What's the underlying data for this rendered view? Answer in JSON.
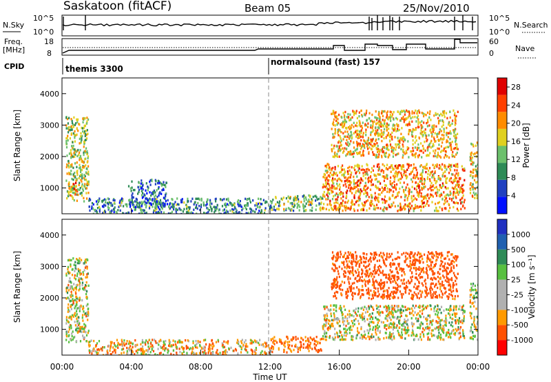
{
  "header": {
    "station": "Saskatoon (fitACF)",
    "beam": "Beam 05",
    "date": "25/Nov/2010"
  },
  "top_panels": {
    "nsky_label": "N.Sky",
    "nsky_ticks": [
      "10^5",
      "10^0"
    ],
    "nsearch_label": "N.Search",
    "freq_label_1": "Freq.",
    "freq_label_2": "[MHz]",
    "freq_ticks": [
      "18",
      "8"
    ],
    "nave_label": "Nave",
    "nave_ticks": [
      "60",
      "0"
    ],
    "cpid_label": "CPID",
    "cpid_segments": [
      {
        "start": "00:00",
        "label": "themis 3300"
      },
      {
        "start": "12:00",
        "label": "normalsound (fast) 157"
      }
    ]
  },
  "colors": {
    "power": [
      "#0010ff",
      "#2040c0",
      "#2e8b57",
      "#6cc06c",
      "#e0d020",
      "#ff8c00",
      "#ff4000",
      "#e00000"
    ],
    "velocity": [
      "#ff0000",
      "#ff5000",
      "#ff9a00",
      "#b0b0b0",
      "#b0b0b0",
      "#58c040",
      "#2e8b57",
      "#2060b0",
      "#2030c0"
    ]
  },
  "chart_data": [
    {
      "type": "heatmap",
      "panel": "power",
      "ylabel": "Slant Range [km]",
      "xlabel": "Time UT",
      "xlim": [
        "00:00",
        "24:00"
      ],
      "ylim": [
        180,
        4500
      ],
      "x_ticks": [
        "00:00",
        "04:00",
        "08:00",
        "12:00",
        "16:00",
        "20:00",
        "00:00"
      ],
      "y_ticks": [
        1000,
        2000,
        3000,
        4000
      ],
      "colorbar": {
        "label": "Power [dB]",
        "ticks": [
          4,
          8,
          12,
          16,
          20,
          24,
          28
        ],
        "range": [
          0,
          30
        ]
      },
      "regions": [
        {
          "t": [
            0.2,
            1.5
          ],
          "r": [
            600,
            3300
          ],
          "value": 16
        },
        {
          "t": [
            0.3,
            0.9
          ],
          "r": [
            800,
            1300
          ],
          "value": 22
        },
        {
          "t": [
            1.5,
            12.0
          ],
          "r": [
            200,
            700
          ],
          "value": 10
        },
        {
          "t": [
            3.8,
            6.0
          ],
          "r": [
            400,
            1300
          ],
          "value": 8
        },
        {
          "t": [
            12.0,
            15.0
          ],
          "r": [
            300,
            800
          ],
          "value": 14
        },
        {
          "t": [
            15.0,
            23.2
          ],
          "r": [
            300,
            1800
          ],
          "value": 22
        },
        {
          "t": [
            15.5,
            22.8
          ],
          "r": [
            2000,
            3500
          ],
          "value": 20
        },
        {
          "t": [
            23.5,
            24.0
          ],
          "r": [
            700,
            2500
          ],
          "value": 18
        }
      ]
    },
    {
      "type": "heatmap",
      "panel": "velocity",
      "ylabel": "Slant Range [km]",
      "xlabel": "Time UT",
      "xlim": [
        "00:00",
        "24:00"
      ],
      "ylim": [
        180,
        4500
      ],
      "x_ticks": [
        "00:00",
        "04:00",
        "08:00",
        "12:00",
        "16:00",
        "20:00",
        "00:00"
      ],
      "y_ticks": [
        1000,
        2000,
        3000,
        4000
      ],
      "colorbar": {
        "label": "Velocity [m s⁻¹]",
        "ticks": [
          "1000",
          "500",
          "100",
          "25",
          "-25",
          "-100",
          "-500",
          "-1000"
        ]
      },
      "regions": [
        {
          "t": [
            0.2,
            1.5
          ],
          "r": [
            600,
            3300
          ],
          "value": 0
        },
        {
          "t": [
            1.5,
            12.0
          ],
          "r": [
            200,
            700
          ],
          "value": -50
        },
        {
          "t": [
            12.0,
            15.0
          ],
          "r": [
            300,
            800
          ],
          "value": -120
        },
        {
          "t": [
            15.0,
            23.2
          ],
          "r": [
            700,
            1800
          ],
          "value": 0
        },
        {
          "t": [
            15.5,
            22.8
          ],
          "r": [
            2000,
            3500
          ],
          "value": -200
        },
        {
          "t": [
            23.5,
            24.0
          ],
          "r": [
            700,
            2500
          ],
          "value": 0
        }
      ]
    }
  ]
}
